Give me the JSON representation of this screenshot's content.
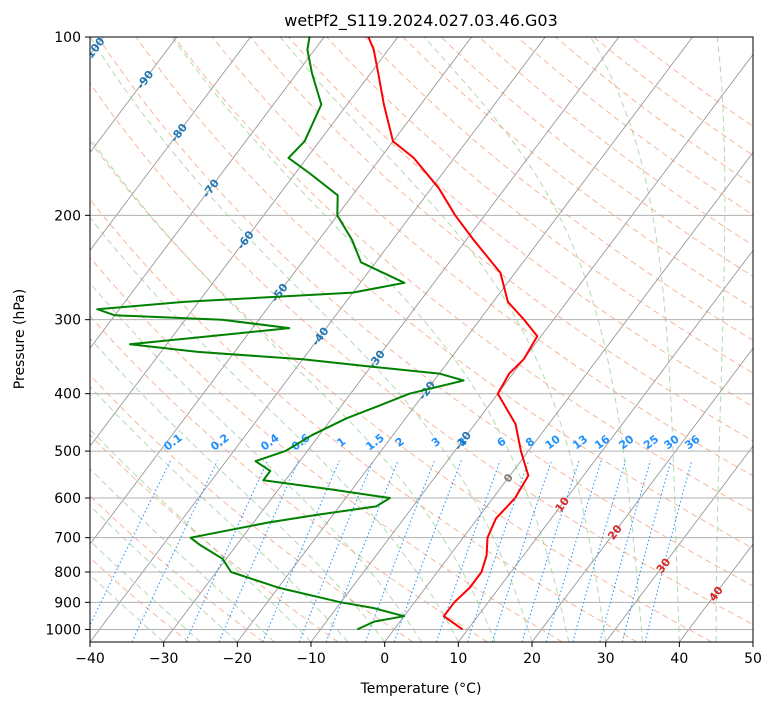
{
  "chart_data": {
    "type": "line",
    "subtype": "skew-t log-p diagram",
    "title": "wetPf2_S119.2024.027.03.46.G03",
    "xlabel": "Temperature (°C)",
    "ylabel": "Pressure (hPa)",
    "xlim": [
      -40,
      50
    ],
    "ylim": [
      1050,
      100
    ],
    "y_scale": "log",
    "x_ticks": [
      -40,
      -30,
      -20,
      -10,
      0,
      10,
      20,
      30,
      40,
      50
    ],
    "x_tick_labels": [
      "−40",
      "−30",
      "−20",
      "−10",
      "0",
      "10",
      "20",
      "30",
      "40",
      "50"
    ],
    "y_ticks": [
      1000,
      900,
      800,
      700,
      600,
      500,
      400,
      300,
      200,
      100
    ],
    "y_tick_labels": [
      "1000",
      "900",
      "800",
      "700",
      "600",
      "500",
      "400",
      "300",
      "200",
      "100"
    ],
    "grid": true,
    "series": [
      {
        "role": "temperature",
        "color": "#ff0000",
        "points": [
          [
            1000,
            9.3
          ],
          [
            950,
            5.4
          ],
          [
            900,
            5.4
          ],
          [
            850,
            6.0
          ],
          [
            800,
            6.0
          ],
          [
            750,
            5.0
          ],
          [
            700,
            3.3
          ],
          [
            650,
            2.5
          ],
          [
            600,
            3.0
          ],
          [
            550,
            2.5
          ],
          [
            500,
            -1.0
          ],
          [
            450,
            -4.5
          ],
          [
            400,
            -10.0
          ],
          [
            370,
            -10.5
          ],
          [
            350,
            -10.0
          ],
          [
            320,
            -10.5
          ],
          [
            300,
            -14.0
          ],
          [
            280,
            -18.0
          ],
          [
            250,
            -22.0
          ],
          [
            220,
            -29.0
          ],
          [
            200,
            -34.0
          ],
          [
            180,
            -39.0
          ],
          [
            160,
            -45.5
          ],
          [
            150,
            -50.0
          ],
          [
            130,
            -55.0
          ],
          [
            115,
            -59.0
          ],
          [
            105,
            -62.0
          ],
          [
            100,
            -64.0
          ]
        ]
      },
      {
        "role": "dewpoint",
        "color": "#008000",
        "points": [
          [
            1000,
            -5.0
          ],
          [
            970,
            -3.5
          ],
          [
            950,
            0.0
          ],
          [
            920,
            -5.0
          ],
          [
            900,
            -10.0
          ],
          [
            850,
            -20.0
          ],
          [
            800,
            -28.0
          ],
          [
            760,
            -30.5
          ],
          [
            720,
            -35.0
          ],
          [
            700,
            -37.0
          ],
          [
            660,
            -28.0
          ],
          [
            640,
            -22.0
          ],
          [
            620,
            -15.0
          ],
          [
            600,
            -14.0
          ],
          [
            580,
            -23.0
          ],
          [
            560,
            -33.0
          ],
          [
            540,
            -33.0
          ],
          [
            520,
            -36.0
          ],
          [
            500,
            -33.0
          ],
          [
            470,
            -31.0
          ],
          [
            440,
            -28.0
          ],
          [
            420,
            -25.0
          ],
          [
            400,
            -22.0
          ],
          [
            380,
            -16.0
          ],
          [
            370,
            -20.0
          ],
          [
            360,
            -30.0
          ],
          [
            350,
            -40.0
          ],
          [
            340,
            -55.0
          ],
          [
            330,
            -65.0
          ],
          [
            320,
            -55.0
          ],
          [
            310,
            -45.0
          ],
          [
            300,
            -55.0
          ],
          [
            295,
            -70.0
          ],
          [
            288,
            -73.0
          ],
          [
            280,
            -62.0
          ],
          [
            270,
            -40.0
          ],
          [
            260,
            -34.0
          ],
          [
            240,
            -42.0
          ],
          [
            220,
            -45.5
          ],
          [
            200,
            -50.0
          ],
          [
            185,
            -52.0
          ],
          [
            170,
            -58.0
          ],
          [
            160,
            -62.5
          ],
          [
            150,
            -62.0
          ],
          [
            130,
            -63.5
          ],
          [
            115,
            -68.0
          ],
          [
            105,
            -71.0
          ],
          [
            100,
            -72.0
          ]
        ]
      }
    ],
    "isotherm_labels": [
      "-100",
      "-90",
      "-80",
      "-70",
      "-60",
      "-50",
      "-40",
      "-30",
      "-20",
      "-10",
      "0",
      "10",
      "20",
      "30",
      "40"
    ],
    "isotherm_label_values": [
      -100,
      -90,
      -80,
      -70,
      -60,
      -50,
      -40,
      -30,
      -20,
      -10,
      0,
      10,
      20,
      30,
      40
    ],
    "isotherm_label_pressures": [
      105,
      118,
      145,
      180,
      220,
      270,
      320,
      350,
      395,
      480,
      555,
      615,
      685,
      780,
      870
    ],
    "isotherm_label_colors": {
      "cold": "#1f77b4",
      "zero": "#808080",
      "warm": "#d62728"
    },
    "mixing_ratio_labels": [
      "0.1",
      "0.2",
      "0.4",
      "0.6",
      "1",
      "1.5",
      "2",
      "3",
      "4",
      "6",
      "8",
      "10",
      "13",
      "16",
      "20",
      "25",
      "30",
      "36"
    ],
    "mixing_ratio_values": [
      0.1,
      0.2,
      0.4,
      0.6,
      1,
      1.5,
      2,
      3,
      4,
      6,
      8,
      10,
      13,
      16,
      20,
      25,
      30,
      36
    ],
    "mixing_ratio_label_color": "#1e90ff",
    "colors": {
      "temperature": "#ff0000",
      "dewpoint": "#008000",
      "isotherm": "#999999",
      "isobar": "#b0b0b0",
      "dry_adiabat": "#f4a582",
      "moist_adiabat": "#a6d8a6",
      "mixing_ratio": "#1e90ff",
      "background": "#ffffff"
    }
  }
}
